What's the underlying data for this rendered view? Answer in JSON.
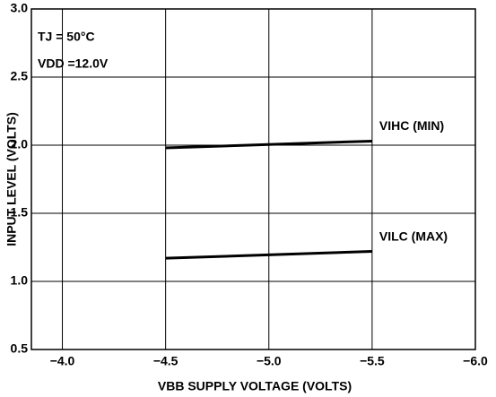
{
  "chart_data": {
    "type": "line",
    "x_label": "VBB SUPPLY VOLTAGE (VOLTS)",
    "y_label": "INPUT LEVEL (VOLTS)",
    "annotations": [
      "TJ = 50°C",
      "VDD =12.0V"
    ],
    "x": [
      -4.5,
      -5.5
    ],
    "series": [
      {
        "name": "VIHC (MIN)",
        "color": "#000000",
        "values": [
          1.98,
          2.03
        ]
      },
      {
        "name": "VILC (MAX)",
        "color": "#000000",
        "values": [
          1.17,
          1.22
        ]
      }
    ],
    "xlim": [
      -3.85,
      -6.0
    ],
    "xticks": [
      {
        "value": -4.0,
        "label": "−4.0"
      },
      {
        "value": -4.5,
        "label": "−4.5"
      },
      {
        "value": -5.0,
        "label": "−5.0"
      },
      {
        "value": -5.5,
        "label": "−5.5"
      },
      {
        "value": -6.0,
        "label": "−6.0"
      }
    ],
    "ylim": [
      0.5,
      3.0
    ],
    "yticks": [
      {
        "value": 0.5,
        "label": "0.5"
      },
      {
        "value": 1.0,
        "label": "1.0"
      },
      {
        "value": 1.5,
        "label": "1.5"
      },
      {
        "value": 2.0,
        "label": "2.0"
      },
      {
        "value": 2.5,
        "label": "2.5"
      },
      {
        "value": 3.0,
        "label": "3.0"
      }
    ],
    "grid": true
  }
}
